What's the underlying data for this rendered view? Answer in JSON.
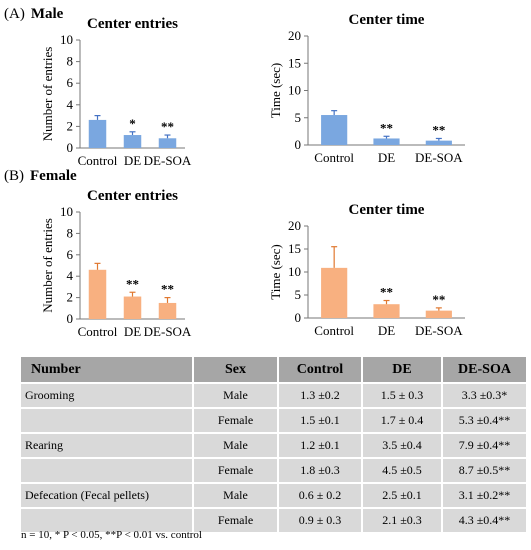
{
  "panels": {
    "a": {
      "letter": "(A)",
      "name": "Male"
    },
    "b": {
      "letter": "(B)",
      "name": "Female"
    }
  },
  "chart_data": [
    {
      "type": "bar",
      "title": "Center entries",
      "ylabel": "Number of entries",
      "categories": [
        "Control",
        "DE",
        "DE-SOA"
      ],
      "values": [
        2.6,
        1.2,
        0.9
      ],
      "errors": [
        0.4,
        0.3,
        0.3
      ],
      "significance": [
        "",
        "*",
        "**"
      ],
      "ylim": [
        0,
        10
      ],
      "yticks": [
        0,
        2,
        4,
        6,
        8,
        10
      ],
      "color": "#7aa7e0",
      "errcolor": "#4472c4"
    },
    {
      "type": "bar",
      "title": "Center time",
      "ylabel": "Time (sec)",
      "categories": [
        "Control",
        "DE",
        "DE-SOA"
      ],
      "values": [
        5.5,
        1.2,
        0.8
      ],
      "errors": [
        0.8,
        0.4,
        0.4
      ],
      "significance": [
        "",
        "**",
        "**"
      ],
      "ylim": [
        0,
        20
      ],
      "yticks": [
        0,
        5,
        10,
        15,
        20
      ],
      "color": "#7aa7e0",
      "errcolor": "#4472c4"
    },
    {
      "type": "bar",
      "title": "Center entries",
      "ylabel": "Number of entries",
      "categories": [
        "Control",
        "DE",
        "DE-SOA"
      ],
      "values": [
        4.6,
        2.1,
        1.5
      ],
      "errors": [
        0.6,
        0.4,
        0.5
      ],
      "significance": [
        "",
        "**",
        "**"
      ],
      "ylim": [
        0,
        10
      ],
      "yticks": [
        0,
        2,
        4,
        6,
        8,
        10
      ],
      "color": "#f8b080",
      "errcolor": "#e07830"
    },
    {
      "type": "bar",
      "title": "Center time",
      "ylabel": "Time (sec)",
      "categories": [
        "Control",
        "DE",
        "DE-SOA"
      ],
      "values": [
        10.9,
        3.0,
        1.6
      ],
      "errors": [
        4.6,
        0.8,
        0.6
      ],
      "significance": [
        "",
        "**",
        "**"
      ],
      "ylim": [
        0,
        20
      ],
      "yticks": [
        0,
        5,
        10,
        15,
        20
      ],
      "color": "#f8b080",
      "errcolor": "#e07830"
    }
  ],
  "table": {
    "headers": [
      "Number",
      "Sex",
      "Control",
      "DE",
      "DE-SOA"
    ],
    "rows": [
      [
        "Grooming",
        "Male",
        "1.3 ±0.2",
        "1.5 ± 0.3",
        "3.3 ±0.3*"
      ],
      [
        "",
        "Female",
        "1.5 ±0.1",
        "1.7 ± 0.4",
        "5.3 ±0.4**"
      ],
      [
        "Rearing",
        "Male",
        "1.2 ±0.1",
        "3.5 ±0.4",
        "7.9 ±0.4**"
      ],
      [
        "",
        "Female",
        "1.8 ±0.3",
        "4.5 ±0.5",
        "8.7 ±0.5**"
      ],
      [
        "Defecation (Fecal pellets)",
        "Male",
        "0.6 ± 0.2",
        "2.5 ±0.1",
        "3.1 ±0.2**"
      ],
      [
        "",
        "Female",
        "0.9 ± 0.3",
        "2.1 ±0.3",
        "4.3 ±0.4**"
      ]
    ]
  },
  "footnote": "n = 10, * P < 0.05, **P < 0.01 vs. control"
}
